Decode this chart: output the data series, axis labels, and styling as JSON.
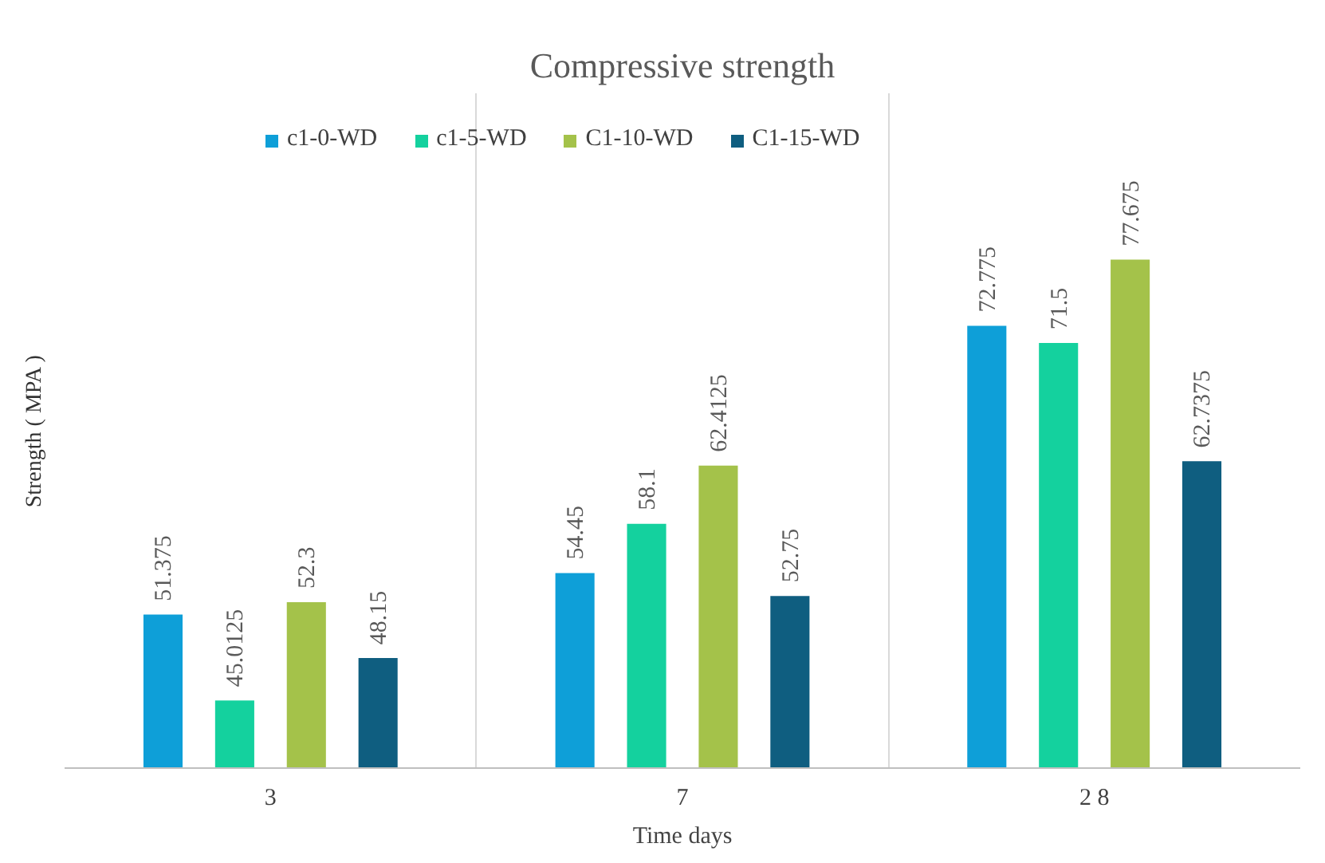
{
  "chart_data": {
    "type": "bar",
    "title": "Compressive strength",
    "xlabel": "Time days",
    "ylabel": "Strength ( MPA )",
    "categories": [
      "3",
      "7",
      "2 8"
    ],
    "series": [
      {
        "name": "c1-0-WD",
        "color": "#0e9fd8",
        "values": [
          51.375,
          54.45,
          72.775
        ]
      },
      {
        "name": "c1-5-WD",
        "color": "#14d19e",
        "values": [
          45.0125,
          58.1,
          71.5
        ]
      },
      {
        "name": "C1-10-WD",
        "color": "#a4c24a",
        "values": [
          52.3,
          62.4125,
          77.675
        ]
      },
      {
        "name": "C1-15-WD",
        "color": "#0f5e80",
        "values": [
          48.15,
          52.75,
          62.7375
        ]
      }
    ],
    "ylim": [
      40,
      90
    ],
    "tick_labels": "x",
    "grid": "x",
    "legend": "top",
    "data_labels": true
  }
}
